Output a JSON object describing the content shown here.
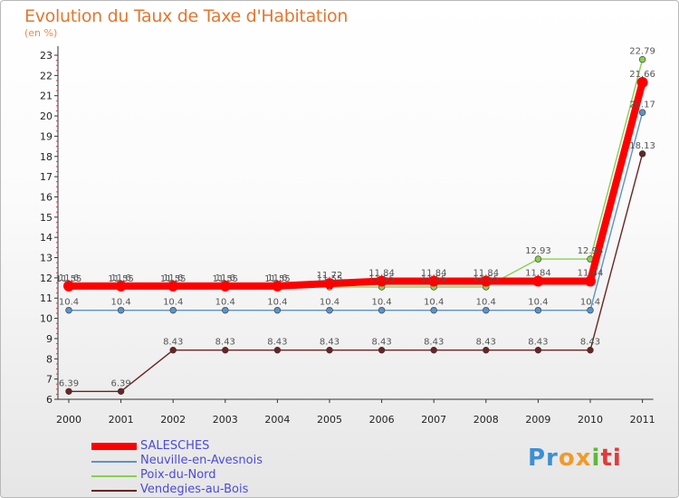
{
  "header": {
    "title": "Evolution du Taux de Taxe d'Habitation",
    "unit": "(en %)"
  },
  "logo": {
    "text": "Proxiti",
    "colors": [
      "#3b8fd6",
      "#f19a2a",
      "#5fb83a",
      "#e23a3a"
    ]
  },
  "chart_data": {
    "type": "line",
    "title": "Evolution du Taux de Taxe d'Habitation",
    "ylabel": "(en %)",
    "xlabel": "",
    "x": [
      "2000",
      "2001",
      "2002",
      "2003",
      "2004",
      "2005",
      "2006",
      "2007",
      "2008",
      "2009",
      "2010",
      "2011"
    ],
    "yticks": [
      6,
      7,
      8,
      9,
      10,
      11,
      12,
      13,
      14,
      15,
      16,
      17,
      18,
      19,
      20,
      21,
      22,
      23
    ],
    "ylim": [
      6,
      23
    ],
    "grid": false,
    "legend_position": "bottom-left",
    "series": [
      {
        "name": "SALESCHES",
        "color": "#ff0000",
        "emphasis": true,
        "values": [
          11.6,
          11.6,
          11.6,
          11.6,
          11.6,
          11.72,
          11.84,
          11.84,
          11.84,
          11.84,
          11.84,
          21.66
        ],
        "labels": [
          "11.6",
          "11.6",
          "11.6",
          "11.6",
          "11.6",
          "11.72",
          "11.84",
          "11.84",
          "11.84",
          "11.84",
          "11.84",
          "21.66"
        ]
      },
      {
        "name": "Neuville-en-Avesnois",
        "color": "#5b93c8",
        "emphasis": false,
        "values": [
          10.4,
          10.4,
          10.4,
          10.4,
          10.4,
          10.4,
          10.4,
          10.4,
          10.4,
          10.4,
          10.4,
          20.17
        ],
        "labels": [
          "10.4",
          "10.4",
          "10.4",
          "10.4",
          "10.4",
          "10.4",
          "10.4",
          "10.4",
          "10.4",
          "10.4",
          "10.4",
          "20.17"
        ]
      },
      {
        "name": "Poix-du-Nord",
        "color": "#88cf50",
        "emphasis": false,
        "values": [
          11.55,
          11.55,
          11.55,
          11.55,
          11.55,
          11.55,
          11.55,
          11.55,
          11.55,
          12.93,
          12.93,
          22.79
        ],
        "labels": [
          "11.55",
          "11.55",
          "11.55",
          "11.55",
          "11.55",
          "11.55",
          "11.55",
          "11.55",
          "11.55",
          "12.93",
          "12.93",
          "22.79"
        ]
      },
      {
        "name": "Vendegies-au-Bois",
        "color": "#6a2424",
        "emphasis": false,
        "values": [
          6.39,
          6.39,
          8.43,
          8.43,
          8.43,
          8.43,
          8.43,
          8.43,
          8.43,
          8.43,
          8.43,
          18.13
        ],
        "labels": [
          "6.39",
          "6.39",
          "8.43",
          "8.43",
          "8.43",
          "8.43",
          "8.43",
          "8.43",
          "8.43",
          "8.43",
          "8.43",
          "18.13"
        ]
      }
    ]
  }
}
